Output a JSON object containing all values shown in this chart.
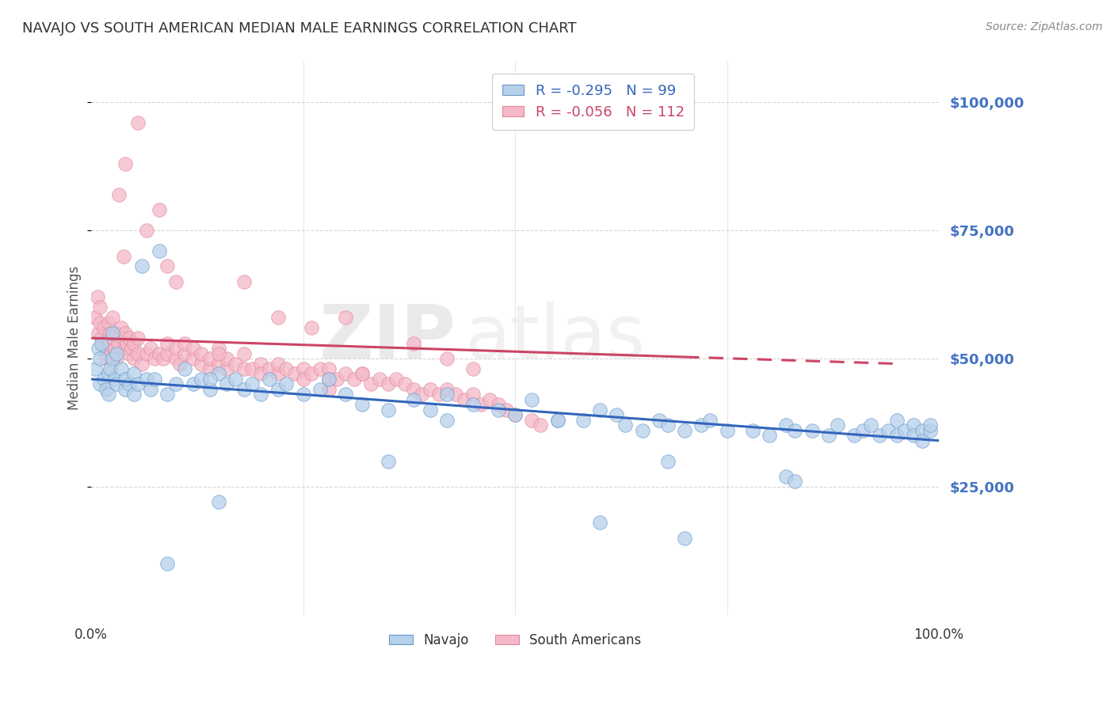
{
  "title": "NAVAJO VS SOUTH AMERICAN MEDIAN MALE EARNINGS CORRELATION CHART",
  "source": "Source: ZipAtlas.com",
  "ylabel": "Median Male Earnings",
  "y_ticks": [
    25000,
    50000,
    75000,
    100000
  ],
  "y_tick_labels": [
    "$25,000",
    "$50,000",
    "$75,000",
    "$100,000"
  ],
  "xlim": [
    0,
    1
  ],
  "ylim": [
    0,
    108000
  ],
  "navajo_R": -0.295,
  "navajo_N": 99,
  "sa_R": -0.056,
  "sa_N": 112,
  "navajo_color": "#b8d0ea",
  "navajo_edge_color": "#6699cc",
  "navajo_line_color": "#3366bb",
  "sa_color": "#f5b8c8",
  "sa_edge_color": "#dd8899",
  "sa_line_color": "#cc4466",
  "watermark_zip": "ZIP",
  "watermark_atlas": "atlas",
  "navajo_line_x": [
    0.0,
    1.0
  ],
  "navajo_line_y": [
    46000,
    34000
  ],
  "sa_line_x": [
    0.0,
    0.95
  ],
  "sa_line_y": [
    54000,
    49000
  ],
  "background_color": "#ffffff",
  "grid_color": "#cccccc",
  "axis_label_color": "#4472c4",
  "title_color": "#333333",
  "navajo_scatter_x": [
    0.005,
    0.008,
    0.01,
    0.01,
    0.012,
    0.015,
    0.018,
    0.02,
    0.02,
    0.022,
    0.025,
    0.025,
    0.028,
    0.03,
    0.03,
    0.035,
    0.04,
    0.04,
    0.045,
    0.05,
    0.05,
    0.055,
    0.06,
    0.065,
    0.07,
    0.075,
    0.08,
    0.09,
    0.1,
    0.11,
    0.12,
    0.13,
    0.14,
    0.15,
    0.16,
    0.17,
    0.18,
    0.19,
    0.2,
    0.21,
    0.22,
    0.23,
    0.25,
    0.27,
    0.28,
    0.3,
    0.32,
    0.35,
    0.38,
    0.4,
    0.42,
    0.45,
    0.48,
    0.5,
    0.52,
    0.55,
    0.58,
    0.6,
    0.62,
    0.63,
    0.65,
    0.67,
    0.68,
    0.7,
    0.72,
    0.73,
    0.75,
    0.78,
    0.8,
    0.82,
    0.83,
    0.85,
    0.87,
    0.88,
    0.9,
    0.91,
    0.92,
    0.93,
    0.94,
    0.95,
    0.95,
    0.96,
    0.97,
    0.97,
    0.98,
    0.98,
    0.99,
    0.99,
    0.15,
    0.35,
    0.6,
    0.7,
    0.82,
    0.14,
    0.42,
    0.55,
    0.68,
    0.83,
    0.09
  ],
  "navajo_scatter_y": [
    48000,
    52000,
    45000,
    50000,
    53000,
    46000,
    44000,
    43000,
    47000,
    48000,
    55000,
    50000,
    46000,
    45000,
    51000,
    48000,
    44000,
    46000,
    45000,
    47000,
    43000,
    45000,
    68000,
    46000,
    44000,
    46000,
    71000,
    43000,
    45000,
    48000,
    45000,
    46000,
    44000,
    47000,
    45000,
    46000,
    44000,
    45000,
    43000,
    46000,
    44000,
    45000,
    43000,
    44000,
    46000,
    43000,
    41000,
    40000,
    42000,
    40000,
    43000,
    41000,
    40000,
    39000,
    42000,
    38000,
    38000,
    40000,
    39000,
    37000,
    36000,
    38000,
    37000,
    36000,
    37000,
    38000,
    36000,
    36000,
    35000,
    37000,
    36000,
    36000,
    35000,
    37000,
    35000,
    36000,
    37000,
    35000,
    36000,
    35000,
    38000,
    36000,
    37000,
    35000,
    36000,
    34000,
    36000,
    37000,
    22000,
    30000,
    18000,
    15000,
    27000,
    46000,
    38000,
    38000,
    30000,
    26000,
    10000
  ],
  "sa_scatter_x": [
    0.005,
    0.007,
    0.008,
    0.01,
    0.01,
    0.012,
    0.015,
    0.015,
    0.018,
    0.02,
    0.02,
    0.022,
    0.025,
    0.025,
    0.028,
    0.03,
    0.03,
    0.032,
    0.035,
    0.038,
    0.04,
    0.04,
    0.042,
    0.045,
    0.045,
    0.048,
    0.05,
    0.05,
    0.055,
    0.055,
    0.06,
    0.065,
    0.07,
    0.075,
    0.08,
    0.085,
    0.09,
    0.09,
    0.1,
    0.1,
    0.105,
    0.11,
    0.11,
    0.12,
    0.12,
    0.13,
    0.13,
    0.14,
    0.14,
    0.15,
    0.15,
    0.16,
    0.16,
    0.17,
    0.18,
    0.18,
    0.19,
    0.2,
    0.2,
    0.21,
    0.22,
    0.22,
    0.23,
    0.24,
    0.25,
    0.25,
    0.26,
    0.27,
    0.28,
    0.28,
    0.29,
    0.3,
    0.31,
    0.32,
    0.33,
    0.34,
    0.35,
    0.36,
    0.37,
    0.38,
    0.39,
    0.4,
    0.41,
    0.42,
    0.43,
    0.44,
    0.45,
    0.46,
    0.47,
    0.48,
    0.49,
    0.5,
    0.52,
    0.53,
    0.1,
    0.22,
    0.32,
    0.28,
    0.15,
    0.08,
    0.055,
    0.04,
    0.065,
    0.033,
    0.038,
    0.09,
    0.18,
    0.3,
    0.42,
    0.45,
    0.38,
    0.26
  ],
  "sa_scatter_y": [
    58000,
    62000,
    55000,
    57000,
    60000,
    54000,
    56000,
    52000,
    50000,
    53000,
    57000,
    55000,
    54000,
    58000,
    52000,
    55000,
    50000,
    53000,
    56000,
    54000,
    52000,
    55000,
    53000,
    51000,
    54000,
    52000,
    50000,
    53000,
    51000,
    54000,
    49000,
    51000,
    52000,
    50000,
    51000,
    50000,
    51000,
    53000,
    50000,
    52000,
    49000,
    51000,
    53000,
    50000,
    52000,
    49000,
    51000,
    48000,
    50000,
    49000,
    52000,
    48000,
    50000,
    49000,
    48000,
    51000,
    48000,
    49000,
    47000,
    48000,
    47000,
    49000,
    48000,
    47000,
    48000,
    46000,
    47000,
    48000,
    46000,
    48000,
    46000,
    47000,
    46000,
    47000,
    45000,
    46000,
    45000,
    46000,
    45000,
    44000,
    43000,
    44000,
    43000,
    44000,
    43000,
    42000,
    43000,
    41000,
    42000,
    41000,
    40000,
    39000,
    38000,
    37000,
    65000,
    58000,
    47000,
    44000,
    51000,
    79000,
    96000,
    88000,
    75000,
    82000,
    70000,
    68000,
    65000,
    58000,
    50000,
    48000,
    53000,
    56000
  ]
}
